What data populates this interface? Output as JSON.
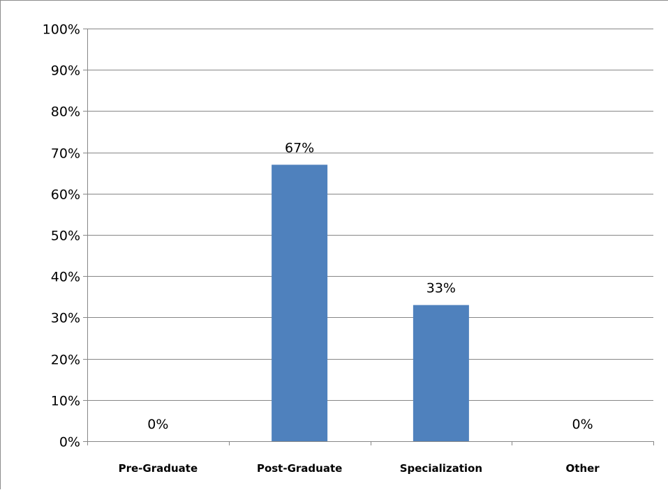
{
  "chart_data": {
    "type": "bar",
    "categories": [
      "Pre-Graduate",
      "Post-Graduate",
      "Specialization",
      "Other"
    ],
    "values": [
      0,
      67,
      33,
      0
    ],
    "data_labels": [
      "0%",
      "67%",
      "33%",
      "0%"
    ],
    "title": "",
    "xlabel": "",
    "ylabel": "",
    "ylim": [
      0,
      100
    ],
    "y_ticks": [
      0,
      10,
      20,
      30,
      40,
      50,
      60,
      70,
      80,
      90,
      100
    ],
    "y_tick_labels": [
      "0%",
      "10%",
      "20%",
      "30%",
      "40%",
      "50%",
      "60%",
      "70%",
      "80%",
      "90%",
      "100%"
    ],
    "grid": true,
    "legend": "none",
    "bar_color": "#4f81bd",
    "gridline_color": "#868686"
  }
}
